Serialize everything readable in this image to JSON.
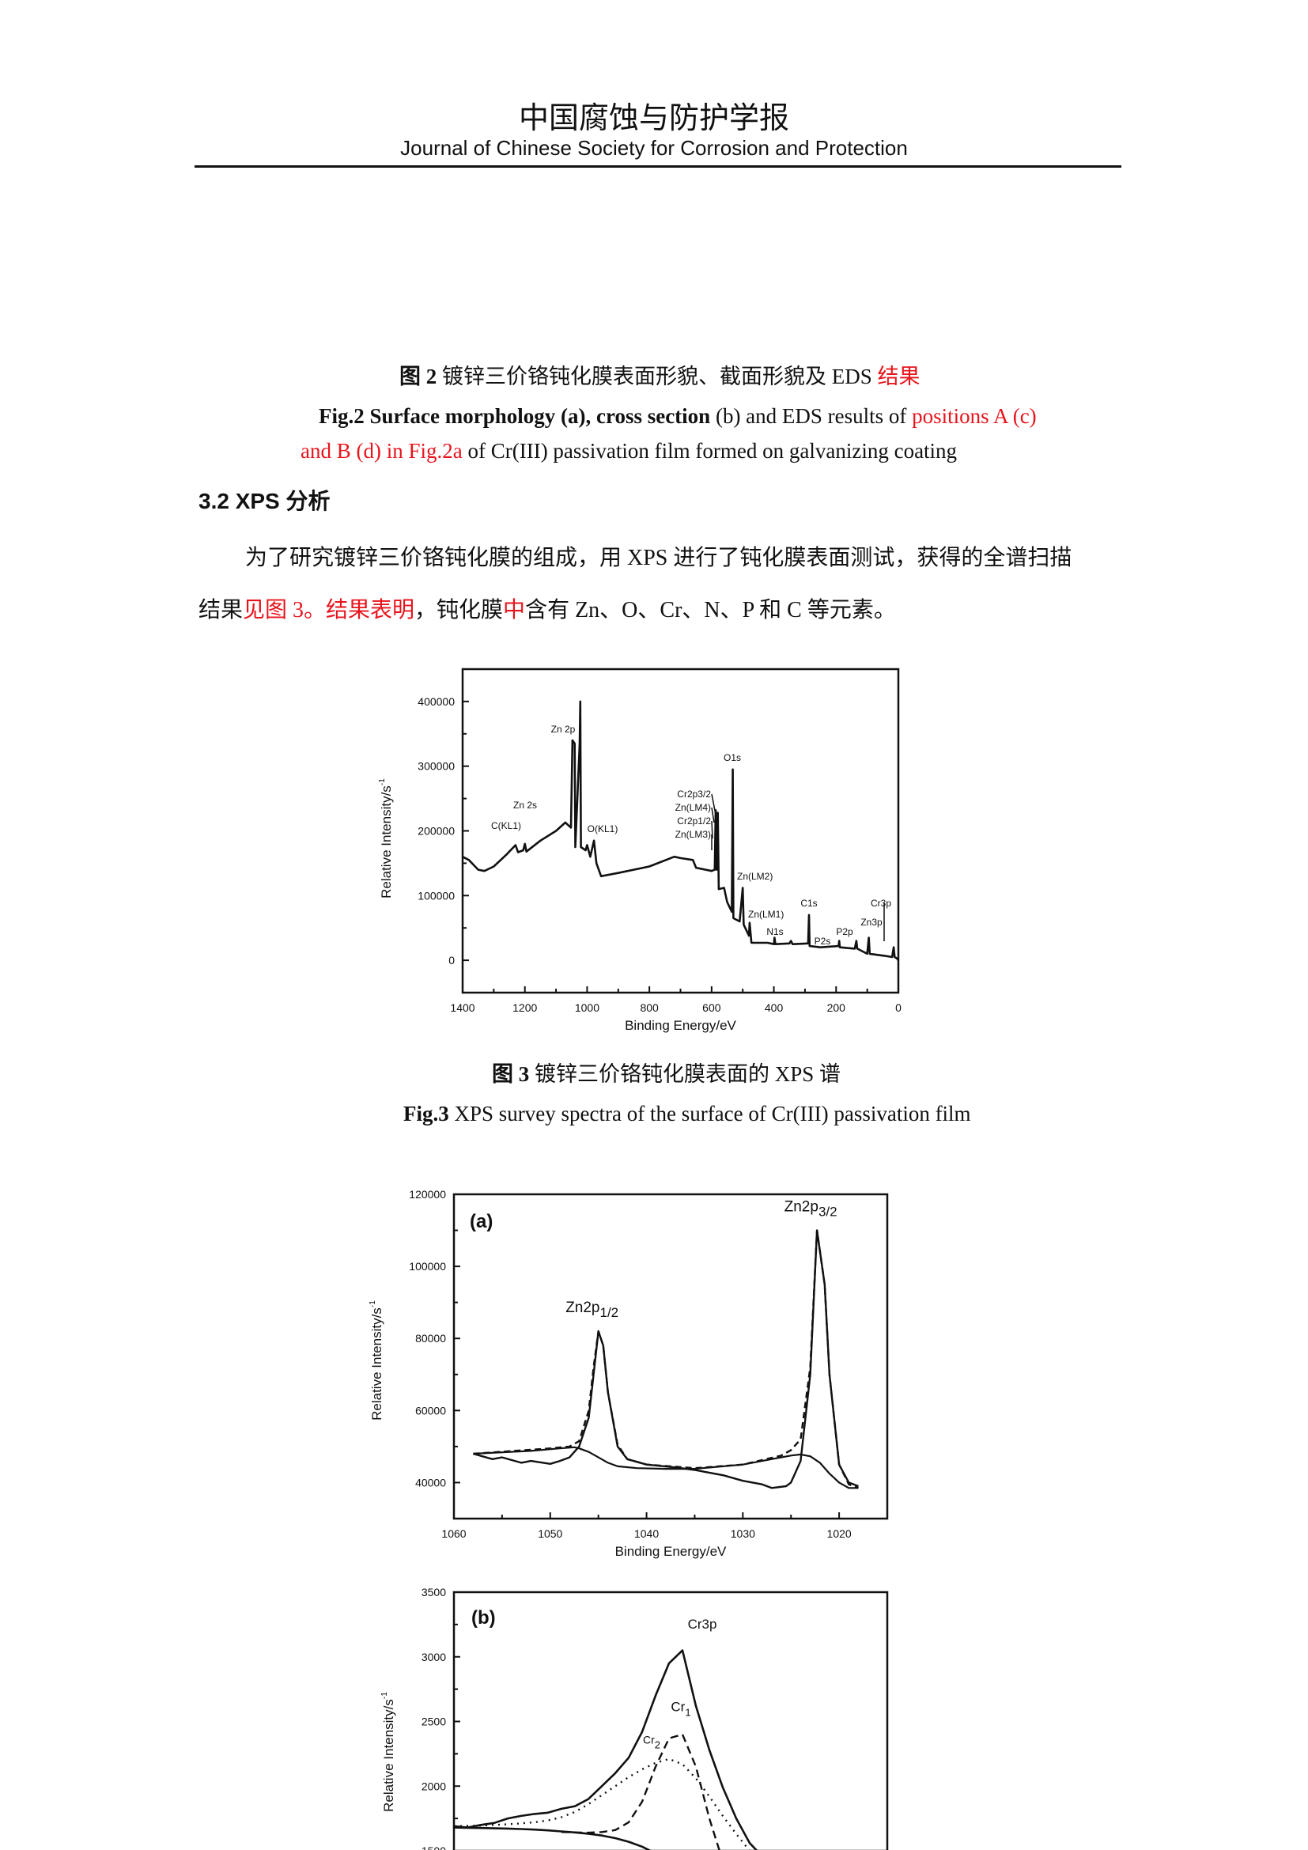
{
  "header": {
    "journal_cn": "中国腐蚀与防护学报",
    "journal_en": "Journal of Chinese Society for Corrosion and Protection"
  },
  "fig2_caption": {
    "cn_label": "图 2",
    "cn_text": " 镀锌三价铬钝化膜表面形貌、截面形貌及 EDS ",
    "cn_red": "结果",
    "en_line1_bold": "Fig.2 Surface morphology (a), cross section",
    "en_line1_normal": " (b) and EDS results of ",
    "en_line1_red": "positions A (c)",
    "en_line2_red": "and B (d) in Fig.2a",
    "en_line2_normal": " of Cr(III) passivation film formed on galvanizing coating"
  },
  "section": {
    "title": "3.2 XPS 分析"
  },
  "paragraph": {
    "line1": "为了研究镀锌三价铬钝化膜的组成，用 XPS  进行了钝化膜表面测试，获得的全谱扫描",
    "line2_a": "结果",
    "line2_b": "见图 3。结果表明",
    "line2_c": "，钝化膜",
    "line2_d": "中",
    "line2_e": "含有 Zn、O、Cr、N、P 和 C 等元素。"
  },
  "fig3_caption": {
    "cn_label": "图 3",
    "cn_text": " 镀锌三价铬钝化膜表面的 XPS 谱",
    "en_label": "Fig.3",
    "en_text": " XPS survey spectra of the surface of Cr(III) passivation film"
  },
  "colors": {
    "text": "#111111",
    "highlight": "#e8141c",
    "line": "#111111"
  },
  "chart_data": [
    {
      "type": "line",
      "xlabel": "Binding Energy/eV",
      "ylabel": "Relative Intensity/s",
      "ylabel_sup": "-1",
      "xlim": [
        1400,
        0
      ],
      "ylim": [
        -50000,
        450000
      ],
      "xticks": [
        1400,
        1200,
        1000,
        800,
        600,
        400,
        200,
        0
      ],
      "yticks": [
        0,
        100000,
        200000,
        300000,
        400000
      ],
      "grid": false,
      "series": [
        {
          "x": [
            1400,
            1380,
            1350,
            1330,
            1300,
            1260,
            1230,
            1222,
            1205,
            1200,
            1195,
            1150,
            1100,
            1070,
            1052,
            1047,
            1040,
            1038,
            1024,
            1022,
            1020,
            1005,
            1000,
            990,
            978,
            970,
            955,
            900,
            800,
            720,
            700,
            660,
            650,
            600,
            590,
            587,
            584,
            580,
            577,
            560,
            550,
            535,
            532,
            530,
            510,
            500,
            497,
            480,
            478,
            472,
            420,
            400,
            398,
            395,
            350,
            345,
            340,
            290,
            287,
            285,
            250,
            192,
            190,
            188,
            140,
            135,
            132,
            100,
            95,
            92,
            45,
            20,
            15,
            12,
            5,
            0
          ],
          "y": [
            160000,
            155000,
            140000,
            138000,
            145000,
            163000,
            178000,
            167000,
            170000,
            180000,
            168000,
            185000,
            200000,
            213000,
            205000,
            340000,
            335000,
            175000,
            335000,
            400000,
            175000,
            170000,
            178000,
            160000,
            185000,
            150000,
            130000,
            135000,
            145000,
            160000,
            158000,
            155000,
            143000,
            138000,
            140000,
            232000,
            140000,
            228000,
            110000,
            112000,
            90000,
            75000,
            295000,
            65000,
            60000,
            112000,
            55000,
            38000,
            58000,
            27000,
            27000,
            25000,
            35000,
            25000,
            26000,
            30000,
            25000,
            26000,
            70000,
            22000,
            20000,
            22000,
            30000,
            20000,
            18000,
            30000,
            18000,
            10000,
            35000,
            10000,
            7000,
            5000,
            20000,
            5000,
            3000,
            0
          ]
        }
      ],
      "annotations": [
        {
          "label": "C(KL1)",
          "x": 1230
        },
        {
          "label": "Zn 2s",
          "x": 1200
        },
        {
          "label": "Zn 2p",
          "x": 1040
        },
        {
          "label": "O(KL1)",
          "x": 978
        },
        {
          "label": "Cr2p3/2",
          "x": 587
        },
        {
          "label": "Zn(LM4)",
          "x": 580
        },
        {
          "label": "Cr2p1/2",
          "x": 577
        },
        {
          "label": "Zn(LM3)",
          "x": 575
        },
        {
          "label": "O1s",
          "x": 532
        },
        {
          "label": "Zn(LM2)",
          "x": 500
        },
        {
          "label": "Zn(LM1)",
          "x": 478
        },
        {
          "label": "N1s",
          "x": 398
        },
        {
          "label": "C1s",
          "x": 287
        },
        {
          "label": "P2s",
          "x": 190
        },
        {
          "label": "P2p",
          "x": 135
        },
        {
          "label": "Zn3p",
          "x": 95
        },
        {
          "label": "Cr3p",
          "x": 45
        }
      ]
    },
    {
      "type": "line",
      "panel": "(a)",
      "xlabel": "Binding Energy/eV",
      "ylabel": "Relative Intensity/s",
      "ylabel_sup": "-1",
      "xlim": [
        1060,
        1015
      ],
      "ylim": [
        30000,
        120000
      ],
      "xticks": [
        1060,
        1050,
        1040,
        1030,
        1020
      ],
      "yticks": [
        40000,
        60000,
        80000,
        100000,
        120000
      ],
      "grid": false,
      "peak_labels": [
        {
          "label": "Zn2p",
          "sub": "1/2",
          "x": 1045,
          "y": 82000
        },
        {
          "label": "Zn2p",
          "sub": "3/2",
          "x": 1022.3,
          "y": 110000
        }
      ],
      "series": [
        {
          "style": "raw",
          "x": [
            1058,
            1056,
            1055,
            1053,
            1052,
            1050,
            1049,
            1048,
            1047,
            1046,
            1045.5,
            1045,
            1044.5,
            1044,
            1043,
            1042,
            1040,
            1037,
            1035,
            1032,
            1030,
            1028,
            1027,
            1025.5,
            1025,
            1024,
            1023,
            1022.3,
            1021.5,
            1021,
            1020,
            1019,
            1018
          ],
          "y": [
            48000,
            46500,
            47000,
            45500,
            46000,
            45200,
            46000,
            47000,
            50000,
            58000,
            70000,
            82000,
            78000,
            65000,
            50000,
            46500,
            45000,
            44200,
            43500,
            42000,
            40500,
            39500,
            38500,
            39000,
            40000,
            46000,
            70000,
            110000,
            95000,
            70000,
            45000,
            40000,
            39000
          ]
        },
        {
          "style": "fit",
          "x": [
            1058,
            1050,
            1048,
            1047,
            1046,
            1045.5,
            1045,
            1044.5,
            1044,
            1043,
            1042,
            1040,
            1035,
            1030,
            1026,
            1025,
            1024,
            1023,
            1022.3,
            1021.5,
            1021,
            1020,
            1019,
            1018
          ],
          "y": [
            48000,
            49500,
            50000,
            51500,
            60000,
            72000,
            82000,
            78000,
            65000,
            50500,
            46500,
            45000,
            44000,
            45000,
            47500,
            49000,
            52000,
            72000,
            110000,
            95000,
            70000,
            45000,
            39500,
            38500
          ]
        },
        {
          "style": "component",
          "x": [
            1058,
            1052,
            1049,
            1047.5,
            1047,
            1046,
            1045,
            1044,
            1043,
            1041,
            1038,
            1035,
            1030,
            1027,
            1025,
            1024,
            1023,
            1022,
            1021,
            1020,
            1019,
            1018
          ],
          "y": [
            48000,
            48800,
            49500,
            49800,
            49500,
            48500,
            47000,
            45500,
            44500,
            44000,
            43800,
            43800,
            45000,
            46500,
            47500,
            47800,
            47300,
            45500,
            42500,
            40000,
            38500,
            38500
          ]
        }
      ]
    },
    {
      "type": "line",
      "panel": "(b)",
      "ylabel": "Relative Intensity/s",
      "ylabel_sup": "-1",
      "ylim": [
        1500,
        3500
      ],
      "yticks": [
        1500,
        2000,
        2500,
        3000,
        3500
      ],
      "grid": false,
      "peak_labels": [
        {
          "label": "Cr3p",
          "sub": ""
        },
        {
          "label": "Cr",
          "sub": "1"
        },
        {
          "label": "Cr",
          "sub": "2"
        }
      ],
      "series": [
        {
          "style": "raw",
          "values": [
            1690,
            1680,
            1700,
            1715,
            1750,
            1770,
            1785,
            1795,
            1825,
            1845,
            1900,
            2000,
            2100,
            2220,
            2420,
            2700,
            2950,
            3050,
            2620,
            2280,
            1990,
            1750,
            1560,
            1450
          ]
        },
        {
          "style": "background",
          "values": [
            1680,
            1678,
            1676,
            1674,
            1672,
            1668,
            1664,
            1658,
            1650,
            1642,
            1632,
            1618,
            1598,
            1570,
            1532,
            1480,
            1410,
            1320,
            null,
            null,
            null,
            null,
            null,
            null
          ]
        },
        {
          "name": "Cr1",
          "style": "dashed",
          "values": [
            null,
            null,
            null,
            null,
            null,
            null,
            null,
            null,
            1645,
            1642,
            1640,
            1645,
            1660,
            1720,
            1880,
            2150,
            2370,
            2400,
            2150,
            1750,
            1420,
            null,
            null,
            null
          ]
        },
        {
          "name": "Cr2",
          "style": "dotted",
          "values": [
            1690,
            1692,
            1695,
            1700,
            1705,
            1712,
            1720,
            1735,
            1760,
            1800,
            1860,
            1930,
            2000,
            2070,
            2130,
            2180,
            2210,
            2170,
            2060,
            1920,
            1770,
            1630,
            1500,
            1420
          ]
        }
      ]
    }
  ]
}
